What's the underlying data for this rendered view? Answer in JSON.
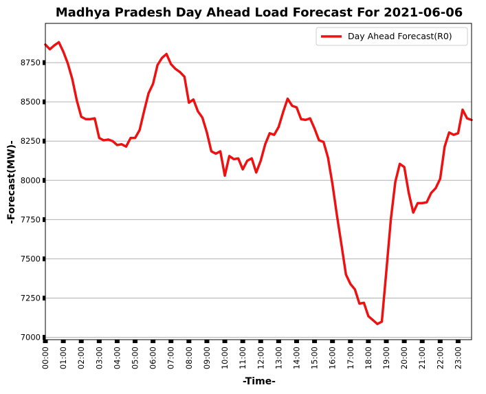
{
  "chart_data": {
    "type": "line",
    "title": "Madhya Pradesh Day Ahead Load Forecast For 2021-06-06",
    "xlabel": "-Time-",
    "ylabel": "-Forecast(MW)-",
    "ylim": [
      6985,
      9000
    ],
    "yticks": [
      7000,
      7250,
      7500,
      7750,
      8000,
      8250,
      8500,
      8750
    ],
    "xticks": [
      "00:00",
      "01:00",
      "02:00",
      "03:00",
      "04:00",
      "05:00",
      "06:00",
      "07:00",
      "08:00",
      "09:00",
      "10:00",
      "11:00",
      "12:00",
      "13:00",
      "14:00",
      "15:00",
      "16:00",
      "17:00",
      "18:00",
      "19:00",
      "20:00",
      "21:00",
      "22:00",
      "23:00"
    ],
    "grid": "horizontal",
    "legend_position": "top-right",
    "colors": {
      "series": "#ee1111"
    },
    "series": [
      {
        "name": "Day Ahead Forecast(R0)",
        "values": [
          8865,
          8835,
          8860,
          8880,
          8820,
          8745,
          8645,
          8510,
          8405,
          8390,
          8390,
          8395,
          8270,
          8255,
          8260,
          8250,
          8225,
          8230,
          8215,
          8270,
          8270,
          8320,
          8440,
          8555,
          8615,
          8735,
          8780,
          8805,
          8740,
          8710,
          8690,
          8660,
          8495,
          8515,
          8440,
          8400,
          8305,
          8185,
          8170,
          8185,
          8030,
          8155,
          8135,
          8140,
          8070,
          8125,
          8140,
          8050,
          8125,
          8230,
          8300,
          8290,
          8340,
          8435,
          8520,
          8475,
          8465,
          8390,
          8385,
          8395,
          8330,
          8255,
          8245,
          8145,
          7975,
          7775,
          7590,
          7400,
          7340,
          7305,
          7215,
          7220,
          7135,
          7110,
          7085,
          7100,
          7420,
          7750,
          7990,
          8105,
          8085,
          7920,
          7795,
          7855,
          7855,
          7860,
          7920,
          7950,
          8010,
          8215,
          8305,
          8290,
          8300,
          8450,
          8395,
          8385
        ]
      }
    ]
  }
}
